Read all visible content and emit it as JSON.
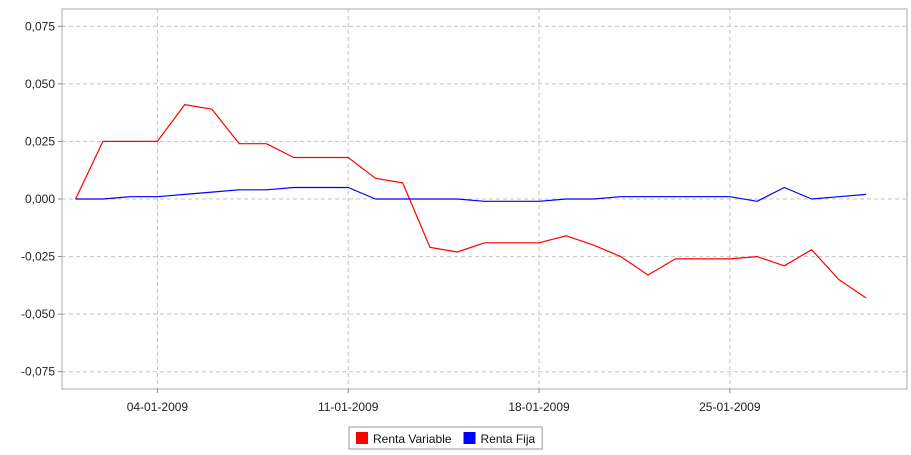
{
  "chart_data": {
    "type": "line",
    "x": [
      "2009-01-01",
      "2009-01-02",
      "2009-01-03",
      "2009-01-04",
      "2009-01-05",
      "2009-01-06",
      "2009-01-07",
      "2009-01-08",
      "2009-01-09",
      "2009-01-10",
      "2009-01-11",
      "2009-01-12",
      "2009-01-13",
      "2009-01-14",
      "2009-01-15",
      "2009-01-16",
      "2009-01-17",
      "2009-01-18",
      "2009-01-19",
      "2009-01-20",
      "2009-01-21",
      "2009-01-22",
      "2009-01-23",
      "2009-01-24",
      "2009-01-25",
      "2009-01-26",
      "2009-01-27",
      "2009-01-28",
      "2009-01-29",
      "2009-01-30"
    ],
    "series": [
      {
        "name": "Renta Variable",
        "color": "#ff0000",
        "values": [
          0.0,
          0.025,
          0.025,
          0.025,
          0.041,
          0.039,
          0.024,
          0.024,
          0.018,
          0.018,
          0.018,
          0.009,
          0.007,
          -0.021,
          -0.023,
          -0.019,
          -0.019,
          -0.019,
          -0.016,
          -0.02,
          -0.025,
          -0.033,
          -0.026,
          -0.026,
          -0.026,
          -0.025,
          -0.029,
          -0.022,
          -0.035,
          -0.043
        ]
      },
      {
        "name": "Renta Fija",
        "color": "#0000ff",
        "values": [
          0.0,
          0.0,
          0.001,
          0.001,
          0.002,
          0.003,
          0.004,
          0.004,
          0.005,
          0.005,
          0.005,
          0.0,
          0.0,
          0.0,
          0.0,
          -0.001,
          -0.001,
          -0.001,
          0.0,
          0.0,
          0.001,
          0.001,
          0.001,
          0.001,
          0.001,
          -0.001,
          0.005,
          0.0,
          0.001,
          0.002
        ]
      }
    ],
    "title": "",
    "xlabel": "",
    "ylabel": "",
    "ylim": [
      -0.0825,
      0.0825
    ],
    "yticks": [
      -0.075,
      -0.05,
      -0.025,
      0.0,
      0.025,
      0.05,
      0.075
    ],
    "ytick_labels": [
      "-0,075",
      "-0,050",
      "-0,025",
      "0,000",
      "0,025",
      "0,050",
      "0,075"
    ],
    "xticks": [
      "2009-01-04",
      "2009-01-11",
      "2009-01-18",
      "2009-01-25"
    ],
    "xtick_labels": [
      "04-01-2009",
      "11-01-2009",
      "18-01-2009",
      "25-01-2009"
    ],
    "grid": true,
    "legend": "bottom-center"
  }
}
